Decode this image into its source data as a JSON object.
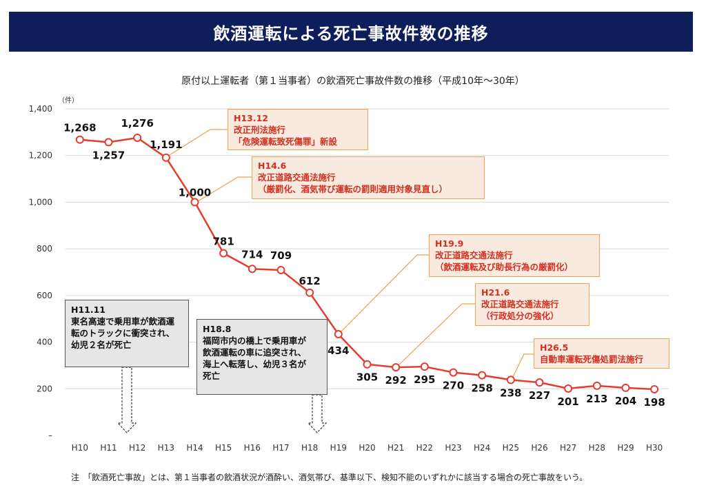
{
  "banner_title": "飲酒運転による死亡事故件数の推移",
  "chart_data": {
    "type": "line",
    "title": "原付以上運転者（第１当事者）の飲酒死亡事故件数の推移（平成10年〜30年）",
    "ylabel": "（件）",
    "ylim": [
      0,
      1400
    ],
    "yticks": [
      0,
      200,
      400,
      600,
      800,
      1000,
      1200,
      1400
    ],
    "ytick_labels": [
      "–",
      "200",
      "400",
      "600",
      "800",
      "1,000",
      "1,200",
      "1,400"
    ],
    "categories": [
      "H10",
      "H11",
      "H12",
      "H13",
      "H14",
      "H15",
      "H16",
      "H17",
      "H18",
      "H19",
      "H20",
      "H21",
      "H22",
      "H23",
      "H24",
      "H25",
      "H26",
      "H27",
      "H28",
      "H29",
      "H30"
    ],
    "values": [
      1268,
      1257,
      1276,
      1191,
      1000,
      781,
      714,
      709,
      612,
      434,
      305,
      292,
      295,
      270,
      258,
      238,
      227,
      201,
      213,
      204,
      198
    ],
    "value_labels": [
      "1,268",
      "1,257",
      "1,276",
      "1,191",
      "1,000",
      "781",
      "714",
      "709",
      "612",
      "434",
      "305",
      "292",
      "295",
      "270",
      "258",
      "238",
      "227",
      "201",
      "213",
      "204",
      "198"
    ],
    "grid": true,
    "line_color": "#e53c2e",
    "marker_fill": "#ffffff"
  },
  "annotations": [
    {
      "lines": [
        "H13.12",
        "改正刑法施行",
        "「危険運転致死傷罪」新設"
      ]
    },
    {
      "lines": [
        "H14.6",
        "改正道路交通法施行",
        "（厳罰化、酒気帯び運転の罰則適用対象見直し）"
      ]
    },
    {
      "lines": [
        "H19.9",
        "改正道路交通法施行",
        "（飲酒運転及び助長行為の厳罰化）"
      ]
    },
    {
      "lines": [
        "H21.6",
        "改正道路交通法施行",
        "（行政処分の強化）"
      ]
    },
    {
      "lines": [
        "H26.5",
        "自動車運転死傷処罰法施行"
      ]
    }
  ],
  "accidents": [
    {
      "lines": [
        "H11.11",
        "東名高速で乗用車が飲酒運",
        "転のトラックに衝突され、",
        "幼児２名が死亡"
      ]
    },
    {
      "lines": [
        "H18.8",
        "福岡市内の橋上で乗用車が",
        "飲酒運転の車に追突され、",
        "海上へ転落し、幼児３名が",
        "死亡"
      ]
    }
  ],
  "footnote": "注　「飲酒死亡事故」とは、第１当事者の飲酒状況が酒酔い、酒気帯び、基準以下、検知不能のいずれかに該当する場合の死亡事故をいう。",
  "colors": {
    "banner": "#0e1e5b",
    "note_border": "#f2a04c",
    "note_fill": "#f8eadf",
    "note_text": "#d32f1f",
    "connector": "#f2a04c"
  }
}
